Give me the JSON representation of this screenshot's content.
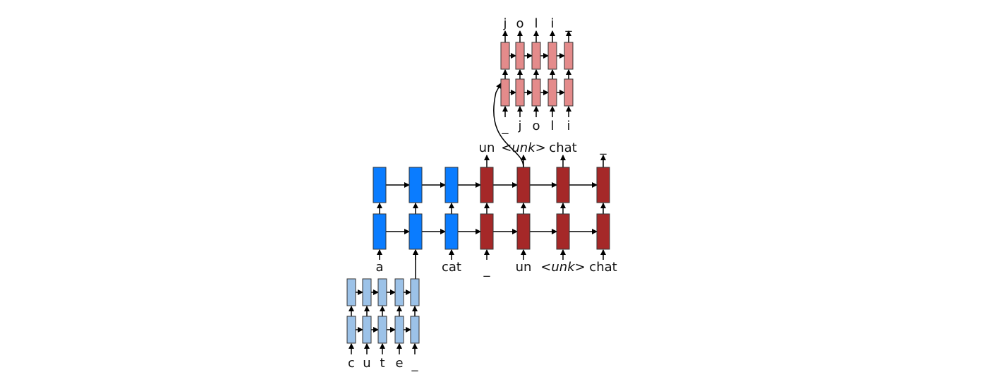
{
  "colors": {
    "word_encoder": "#0a7cff",
    "char_encoder": "#9cc2e8",
    "word_decoder": "#a52828",
    "char_decoder": "#e48b8b",
    "arrow": "#000000"
  },
  "word_encoder_inputs": [
    "a",
    "",
    "cat"
  ],
  "word_decoder_inputs": [
    "_",
    "un",
    "unk",
    "chat"
  ],
  "word_decoder_outputs": [
    "un",
    "unk",
    "chat",
    "_"
  ],
  "char_encoder_inputs": [
    "c",
    "u",
    "t",
    "e",
    "_"
  ],
  "char_decoder_inputs": [
    "_",
    "j",
    "o",
    "l",
    "i"
  ],
  "char_decoder_outputs": [
    "j",
    "o",
    "l",
    "i",
    "_"
  ]
}
